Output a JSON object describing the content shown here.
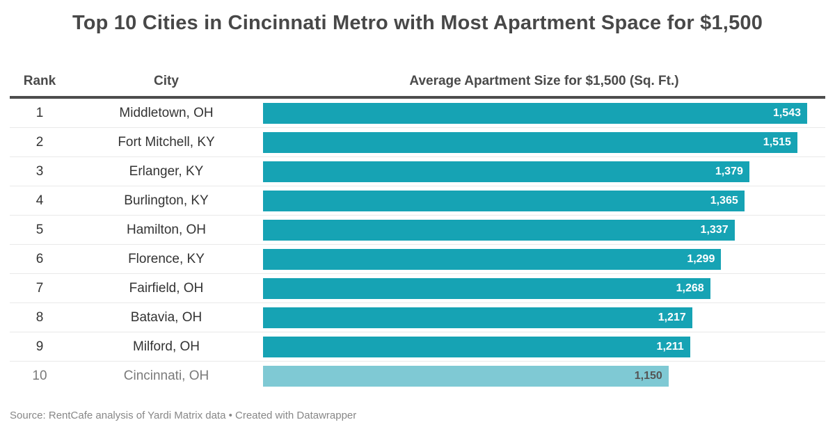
{
  "title": "Top 10 Cities in Cincinnati Metro with Most Apartment Space for $1,500",
  "table": {
    "headers": {
      "rank": "Rank",
      "city": "City",
      "value": "Average Apartment Size for $1,500 (Sq. Ft.)"
    }
  },
  "chart_data": {
    "type": "bar",
    "orientation": "horizontal",
    "title": "Top 10 Cities in Cincinnati Metro with Most Apartment Space for $1,500",
    "xlabel": "Average Apartment Size for $1,500 (Sq. Ft.)",
    "ylabel": "City",
    "ranks": [
      1,
      2,
      3,
      4,
      5,
      6,
      7,
      8,
      9,
      10
    ],
    "categories": [
      "Middletown, OH",
      "Fort Mitchell, KY",
      "Erlanger, KY",
      "Burlington, KY",
      "Hamilton, OH",
      "Florence, KY",
      "Fairfield, OH",
      "Batavia, OH",
      "Milford, OH",
      "Cincinnati, OH"
    ],
    "values": [
      1543,
      1515,
      1379,
      1365,
      1337,
      1299,
      1268,
      1217,
      1211,
      1150
    ],
    "value_labels": [
      "1,543",
      "1,515",
      "1,379",
      "1,365",
      "1,337",
      "1,299",
      "1,268",
      "1,217",
      "1,211",
      "1,150"
    ],
    "xlim": [
      0,
      1543
    ],
    "grid": false,
    "legend": false,
    "highlight_index": 9
  },
  "colors": {
    "bar": "#16a3b4",
    "bar_highlight": "#7fc9d4",
    "title_text": "#484848",
    "row_text": "#333333",
    "muted_text": "#7a7a7a",
    "value_label_on_bar": "#ffffff",
    "value_label_on_highlight": "#555555",
    "header_border": "#4d4d4d",
    "row_divider": "#e9e9e9",
    "footer_text": "#878787"
  },
  "footer": {
    "text": "Source: RentCafe analysis of Yardi Matrix data • Created with Datawrapper"
  }
}
